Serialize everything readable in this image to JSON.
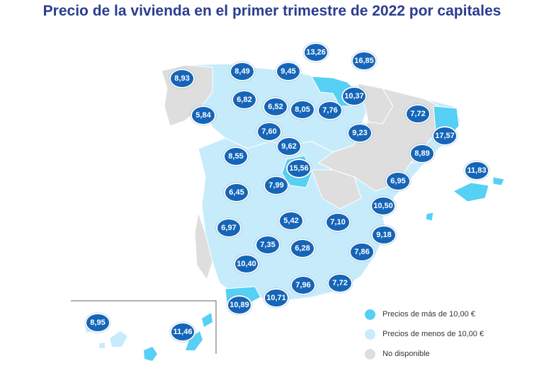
{
  "title": "Precio de la vivienda en el primer trimestre de 2022 por capitales",
  "colors": {
    "high": "#56d0f5",
    "low": "#c6ecfb",
    "nodata": "#dedede",
    "bubble": "#1565b8",
    "title": "#2a3d8f"
  },
  "legend": [
    {
      "label": "Precios de más de 10,00 €",
      "color": "#56d0f5"
    },
    {
      "label": "Precios de menos de 10,00 €",
      "color": "#c6ecfb"
    },
    {
      "label": "No disponible",
      "color": "#dedede"
    }
  ],
  "values": [
    "8,93",
    "5,84",
    "8,49",
    "6,82",
    "9,45",
    "13,26",
    "16,85",
    "10,37",
    "6,52",
    "8,05",
    "7,76",
    "7,60",
    "9,62",
    "9,23",
    "7,72",
    "17,57",
    "8,55",
    "15,56",
    "7,99",
    "8,89",
    "11,83",
    "6,45",
    "6,95",
    "10,50",
    "6,97",
    "5,42",
    "7,10",
    "9,18",
    "7,35",
    "6,28",
    "7,86",
    "10,40",
    "7,96",
    "7,72",
    "10,89",
    "10,71",
    "8,95",
    "11,46"
  ]
}
